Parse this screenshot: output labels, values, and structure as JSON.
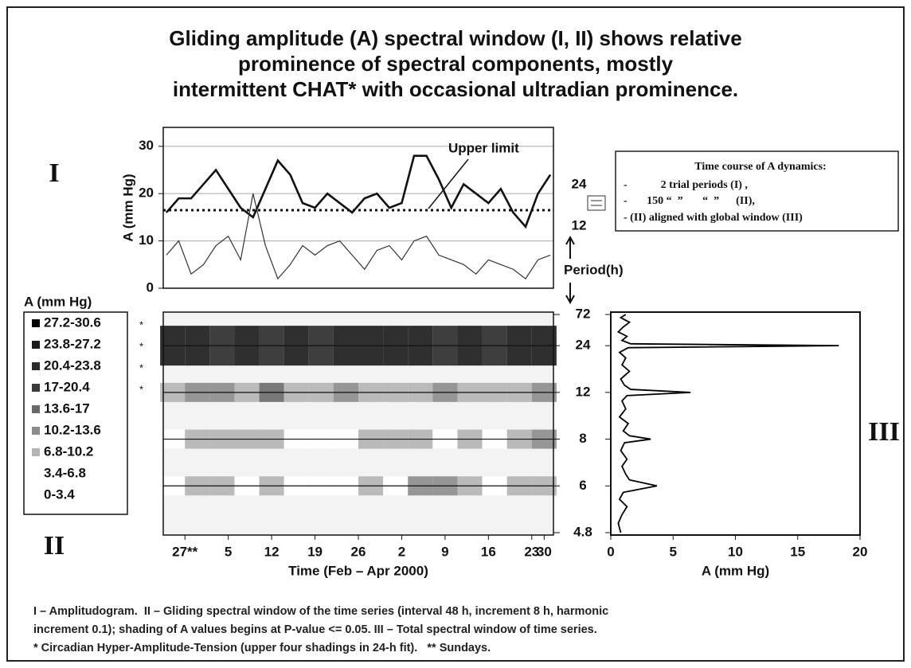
{
  "title": [
    "Gliding amplitude (A) spectral window (I, II) shows relative",
    "prominence of spectral components, mostly",
    "intermittent CHAT* with occasional ultradian prominence."
  ],
  "panel_labels": [
    "I",
    "II",
    "III"
  ],
  "info_box": [
    "Time course of A  dynamics:",
    "-            2 trial periods (I) ,",
    "-       150 “  ”       “  ”      (II),",
    "- (II) aligned with global window (III)"
  ],
  "period_legend": {
    "top": "24",
    "bottom": "12",
    "label": "Period(h)"
  },
  "chart_data": [
    {
      "type": "line",
      "ylabel": "A (mm Hg)",
      "xlim": [
        -3.5,
        59.5
      ],
      "ylim": [
        0,
        34
      ],
      "yticks": [
        0,
        10,
        20,
        30
      ],
      "grid": true,
      "x": [
        -3,
        -1,
        1,
        3,
        5,
        7,
        9,
        11,
        13,
        15,
        17,
        19,
        21,
        23,
        25,
        27,
        29,
        31,
        33,
        35,
        37,
        39,
        41,
        43,
        45,
        47,
        49,
        51,
        53,
        55,
        57,
        59
      ],
      "series": [
        {
          "color": "#111111",
          "values": [
            16,
            19,
            19,
            22,
            25,
            21,
            17,
            15,
            21,
            27,
            24,
            18,
            17,
            20,
            18,
            16,
            19,
            20,
            17,
            18,
            28,
            28,
            23,
            17,
            22,
            20,
            18,
            21,
            16,
            13,
            20,
            24
          ]
        },
        {
          "color": "#333333",
          "values": [
            7,
            10,
            3,
            5,
            9,
            11,
            6,
            20,
            9,
            2,
            5,
            9,
            7,
            9,
            10,
            7,
            4,
            8,
            9,
            6,
            10,
            11,
            7,
            6,
            5,
            3,
            6,
            5,
            4,
            2,
            6,
            7
          ]
        }
      ],
      "upper_limit": 16.5,
      "annotation": "Upper limit"
    },
    {
      "type": "heatmap",
      "xlabel": "Time (Feb – Apr 2000)",
      "xlim": [
        -3.5,
        59.5
      ],
      "xticks": [
        {
          "value": 0,
          "label": "27**"
        },
        {
          "value": 7,
          "label": "5"
        },
        {
          "value": 14,
          "label": "12"
        },
        {
          "value": 21,
          "label": "19"
        },
        {
          "value": 28,
          "label": "26"
        },
        {
          "value": 35,
          "label": "2"
        },
        {
          "value": 42,
          "label": "9"
        },
        {
          "value": 49,
          "label": "16"
        },
        {
          "value": 56,
          "label": "23"
        },
        {
          "value": 58,
          "label": "30"
        }
      ],
      "ylim": [
        72,
        4.8
      ],
      "yticks": [
        72,
        24,
        12,
        8,
        6,
        4.8
      ],
      "yscale": "reciprocal",
      "x": [
        -2,
        2,
        6,
        10,
        14,
        18,
        22,
        26,
        30,
        34,
        38,
        42,
        46,
        50,
        54,
        58
      ],
      "rows": [
        24,
        12,
        8,
        6
      ],
      "z": [
        [
          25,
          24,
          22,
          24,
          23,
          25,
          22,
          24,
          24,
          26,
          24,
          22,
          24,
          21,
          24,
          25
        ],
        [
          9,
          11,
          12,
          8,
          14,
          7,
          10,
          12,
          8,
          10,
          9,
          11,
          8,
          9,
          10,
          12
        ],
        [
          4,
          7,
          9,
          8,
          10,
          6,
          5,
          4,
          7,
          8,
          9,
          5,
          7,
          6,
          9,
          11
        ],
        [
          3,
          9,
          8,
          4,
          10,
          6,
          4,
          3,
          8,
          5,
          12,
          11,
          7,
          5,
          8,
          10
        ]
      ],
      "legend_title": "A (mm Hg)",
      "bins": [
        0,
        3.4,
        6.8,
        10.2,
        13.6,
        17,
        20.4,
        23.8,
        27.2,
        30.6
      ],
      "colors": [
        "#ffffff",
        "#ffffff",
        "#b4b4b4",
        "#8c8c8c",
        "#6a6a6a",
        "#3a3a3a",
        "#2a2a2a",
        "#1a1a1a",
        "#050505"
      ],
      "legend_labels": [
        "0-3.4",
        "3.4-6.8",
        "6.8-10.2",
        "10.2-13.6",
        "13.6-17",
        "17-20.4",
        "20.4-23.8",
        "23.8-27.2",
        "27.2-30.6"
      ],
      "chat_mark": "*",
      "chat_levels": 4
    },
    {
      "type": "spectrum",
      "xlabel": "A (mm Hg)",
      "xlim": [
        0,
        20
      ],
      "xticks": [
        0,
        5,
        10,
        15,
        20
      ],
      "ylim": [
        72,
        4.8
      ],
      "yscale": "reciprocal",
      "color": "#000000",
      "periods": [
        72,
        60,
        48,
        40,
        34,
        30,
        27,
        25,
        24,
        23,
        21,
        19,
        17,
        15.5,
        14,
        13,
        12.4,
        12,
        11.6,
        11,
        10.2,
        9.5,
        9,
        8.5,
        8.2,
        8,
        7.8,
        7.4,
        7,
        6.7,
        6.4,
        6.2,
        6,
        5.8,
        5.6,
        5.4,
        5.2,
        5,
        4.8
      ],
      "values": [
        1.2,
        0.8,
        1.5,
        1,
        0.6,
        1.3,
        0.9,
        1.6,
        18.3,
        1.4,
        0.7,
        1.2,
        0.9,
        1.5,
        0.8,
        1.1,
        1.6,
        6.4,
        1.3,
        0.9,
        1.2,
        0.7,
        1.4,
        1,
        1.5,
        3.2,
        1.1,
        0.8,
        1.3,
        0.9,
        1.2,
        1.5,
        3.7,
        1,
        0.7,
        1.3,
        0.9,
        0.6,
        0.8
      ]
    }
  ],
  "caption": [
    "I – Amplitudogram.  II – Gliding spectral window of the time series (interval 48 h, increment 8 h, harmonic",
    "increment 0.1); shading of A values begins at P-value <= 0.05.  III – Total spectral window of time series.",
    "* Circadian Hyper-Amplitude-Tension (upper four shadings in 24-h fit).   ** Sundays."
  ]
}
